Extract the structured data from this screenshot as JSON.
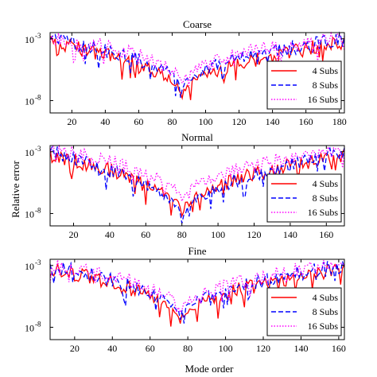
{
  "figure": {
    "ylabel": "Relative error",
    "xlabel": "Mode order"
  },
  "chart_data": [
    {
      "type": "line",
      "title": "Coarse",
      "xlim": [
        7,
        183
      ],
      "ylim_log10": [
        -9,
        -2.5
      ],
      "xticks": [
        "20",
        "40",
        "60",
        "80",
        "100",
        "120",
        "140",
        "160",
        "180"
      ],
      "xtick_values": [
        20,
        40,
        60,
        80,
        100,
        120,
        140,
        160,
        180
      ],
      "yticks": [
        {
          "base": "10",
          "exp": "-3",
          "value": -3
        },
        {
          "base": "10",
          "exp": "-8",
          "value": -8
        }
      ],
      "legend_position": "right",
      "min_x": 86,
      "min_log10": [
        -7.8,
        -7.1,
        -6.6
      ],
      "series": [
        {
          "name": "4 Subs",
          "color": "#ff0000",
          "dash": "solid"
        },
        {
          "name": "8 Subs",
          "color": "#0000ff",
          "dash": "dashed"
        },
        {
          "name": "16 Subs",
          "color": "#ff00ff",
          "dash": "dotted"
        }
      ]
    },
    {
      "type": "line",
      "title": "Normal",
      "xlim": [
        7,
        170
      ],
      "ylim_log10": [
        -9,
        -2.5
      ],
      "xticks": [
        "20",
        "40",
        "60",
        "80",
        "100",
        "120",
        "140",
        "160"
      ],
      "xtick_values": [
        20,
        40,
        60,
        80,
        100,
        120,
        140,
        160
      ],
      "yticks": [
        {
          "base": "10",
          "exp": "-3",
          "value": -3
        },
        {
          "base": "10",
          "exp": "-8",
          "value": -8
        }
      ],
      "legend_position": "right",
      "min_x": 80,
      "min_log10": [
        -8.2,
        -8.8,
        -7.0
      ],
      "series": [
        {
          "name": "4 Subs",
          "color": "#ff0000",
          "dash": "solid"
        },
        {
          "name": "8 Subs",
          "color": "#0000ff",
          "dash": "dashed"
        },
        {
          "name": "16 Subs",
          "color": "#ff00ff",
          "dash": "dotted"
        }
      ]
    },
    {
      "type": "line",
      "title": "Fine",
      "xlim": [
        7,
        163
      ],
      "ylim_log10": [
        -9,
        -2.5
      ],
      "xticks": [
        "20",
        "40",
        "60",
        "80",
        "100",
        "120",
        "140",
        "160"
      ],
      "xtick_values": [
        20,
        40,
        60,
        80,
        100,
        120,
        140,
        160
      ],
      "yticks": [
        {
          "base": "10",
          "exp": "-3",
          "value": -3
        },
        {
          "base": "10",
          "exp": "-8",
          "value": -8
        }
      ],
      "legend_position": "right",
      "min_x": 76,
      "min_log10": [
        -7.7,
        -7.4,
        -6.8
      ],
      "series": [
        {
          "name": "4 Subs",
          "color": "#ff0000",
          "dash": "solid"
        },
        {
          "name": "8 Subs",
          "color": "#0000ff",
          "dash": "dashed"
        },
        {
          "name": "16 Subs",
          "color": "#ff00ff",
          "dash": "dotted"
        }
      ]
    }
  ]
}
